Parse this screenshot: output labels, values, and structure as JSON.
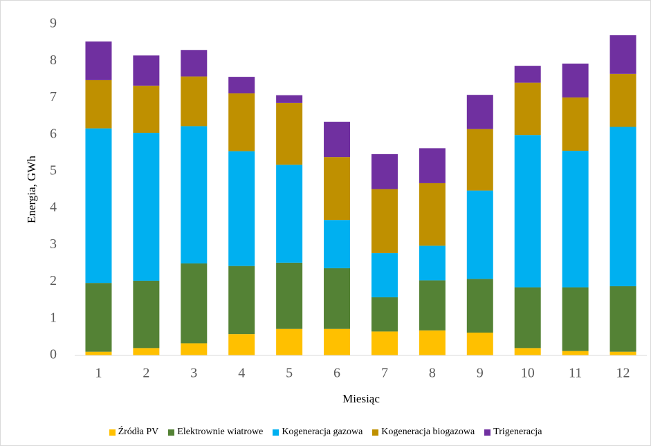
{
  "chart_data": {
    "type": "stacked_bar",
    "y_label": "Energia, GWh",
    "x_label": "Miesiąc",
    "categories": [
      "1",
      "2",
      "3",
      "4",
      "5",
      "6",
      "7",
      "8",
      "9",
      "10",
      "11",
      "12"
    ],
    "series": [
      {
        "name": "Źródła PV",
        "color": "#ffc000",
        "values": [
          0.1,
          0.2,
          0.33,
          0.58,
          0.72,
          0.72,
          0.65,
          0.68,
          0.62,
          0.2,
          0.12,
          0.1
        ]
      },
      {
        "name": "Elektrownie wiatrowe",
        "color": "#548235",
        "values": [
          1.87,
          1.83,
          2.17,
          1.85,
          1.8,
          1.65,
          0.93,
          1.36,
          1.46,
          1.65,
          1.73,
          1.78
        ]
      },
      {
        "name": "Kogeneracja gazowa",
        "color": "#00b0f0",
        "values": [
          4.2,
          4.02,
          3.73,
          3.12,
          2.66,
          1.31,
          1.2,
          0.94,
          2.4,
          4.14,
          3.71,
          4.33
        ]
      },
      {
        "name": "Kogeneracja biogazowa",
        "color": "#bf9000",
        "values": [
          1.31,
          1.28,
          1.35,
          1.57,
          1.68,
          1.71,
          1.74,
          1.7,
          1.67,
          1.42,
          1.45,
          1.44
        ]
      },
      {
        "name": "Trigeneracja",
        "color": "#7030a0",
        "values": [
          1.05,
          0.82,
          0.72,
          0.45,
          0.21,
          0.96,
          0.95,
          0.95,
          0.93,
          0.46,
          0.92,
          1.05
        ]
      }
    ],
    "ylim": [
      0,
      9
    ],
    "yticks": [
      0,
      1,
      2,
      3,
      4,
      5,
      6,
      7,
      8,
      9
    ],
    "grid": false
  }
}
